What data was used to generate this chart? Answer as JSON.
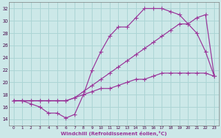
{
  "xlabel": "Windchill (Refroidissement éolien,°C)",
  "bg_color": "#cce8e8",
  "grid_color": "#aad4d4",
  "line_color": "#993399",
  "xlim": [
    -0.5,
    23.5
  ],
  "ylim": [
    13,
    33
  ],
  "yticks": [
    14,
    16,
    18,
    20,
    22,
    24,
    26,
    28,
    30,
    32
  ],
  "xticks": [
    0,
    1,
    2,
    3,
    4,
    5,
    6,
    7,
    8,
    9,
    10,
    11,
    12,
    13,
    14,
    15,
    16,
    17,
    18,
    19,
    20,
    21,
    22,
    23
  ],
  "curve1_x": [
    0,
    1,
    2,
    3,
    4,
    5,
    6,
    7,
    8,
    9,
    10,
    11,
    12,
    13,
    14,
    15,
    16,
    17,
    18,
    19,
    20,
    21,
    22,
    23
  ],
  "curve1_y": [
    17.0,
    17.0,
    16.5,
    16.0,
    15.0,
    15.0,
    14.2,
    14.8,
    18.0,
    22.0,
    25.0,
    27.5,
    29.0,
    29.0,
    30.5,
    32.0,
    32.0,
    32.0,
    31.5,
    31.0,
    29.5,
    28.0,
    25.0,
    21.0
  ],
  "curve2_x": [
    0,
    1,
    2,
    3,
    4,
    5,
    6,
    7,
    8,
    9,
    10,
    11,
    12,
    13,
    14,
    15,
    16,
    17,
    18,
    19,
    20,
    21,
    22,
    23
  ],
  "curve2_y": [
    17.0,
    17.0,
    17.0,
    17.0,
    17.0,
    17.0,
    17.0,
    17.5,
    18.5,
    19.5,
    20.5,
    21.5,
    22.5,
    23.5,
    24.5,
    25.5,
    26.5,
    27.5,
    28.5,
    29.5,
    29.5,
    30.5,
    31.0,
    21.0
  ],
  "curve3_x": [
    0,
    1,
    2,
    3,
    4,
    5,
    6,
    7,
    8,
    9,
    10,
    11,
    12,
    13,
    14,
    15,
    16,
    17,
    18,
    19,
    20,
    21,
    22,
    23
  ],
  "curve3_y": [
    17.0,
    17.0,
    17.0,
    17.0,
    17.0,
    17.0,
    17.0,
    17.5,
    18.0,
    18.5,
    19.0,
    19.0,
    19.5,
    20.0,
    20.5,
    20.5,
    21.0,
    21.5,
    21.5,
    21.5,
    21.5,
    21.5,
    21.5,
    21.0
  ]
}
